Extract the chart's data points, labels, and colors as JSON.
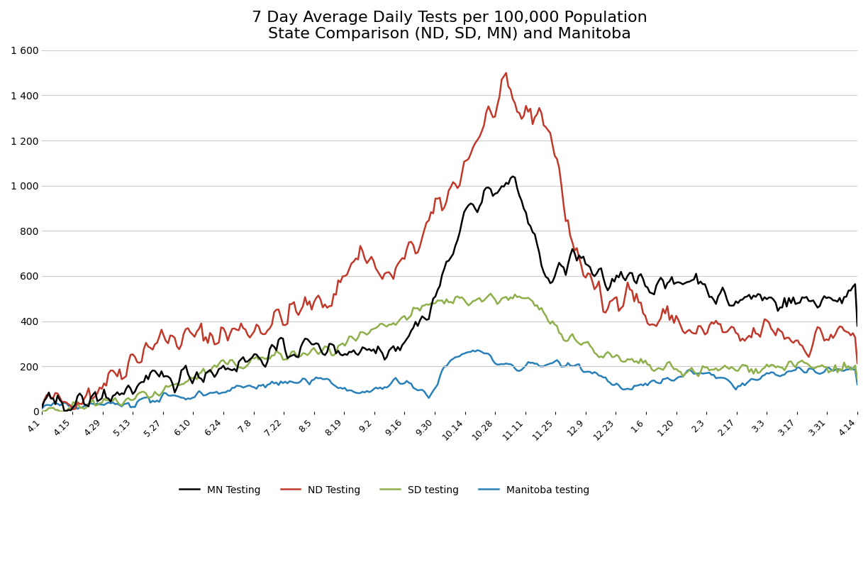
{
  "title": "7 Day Average Daily Tests per 100,000 Population\nState Comparison (ND, SD, MN) and Manitoba",
  "title_fontsize": 16,
  "background_color": "#ffffff",
  "ylim": [
    0,
    1600
  ],
  "yticks": [
    0,
    200,
    400,
    600,
    800,
    1000,
    1200,
    1400,
    1600
  ],
  "ytick_labels": [
    "0",
    "200",
    "400",
    "600",
    "800",
    "1 000",
    "1 200",
    "1 400",
    "1 600"
  ],
  "x_labels": [
    "4.1",
    "4.15",
    "4.29",
    "5.13",
    "5.27",
    "6.10",
    "6.24",
    "7.8",
    "7.22",
    "8.5",
    "8.19",
    "9.2",
    "9.16",
    "9.30",
    "10.14",
    "10.28",
    "11.11",
    "11.25",
    "12.9",
    "12.23",
    "1.6",
    "1.20",
    "2.3",
    "2.17",
    "3.3",
    "3.17",
    "3.31",
    "4.14"
  ],
  "line_colors": {
    "MN": "#000000",
    "ND": "#c0392b",
    "SD": "#8db04b",
    "MB": "#2980b9"
  },
  "line_width": 1.8,
  "legend_labels": [
    "MN Testing",
    "ND Testing",
    "SD testing",
    "Manitoba testing"
  ],
  "grid_color": "#cccccc"
}
